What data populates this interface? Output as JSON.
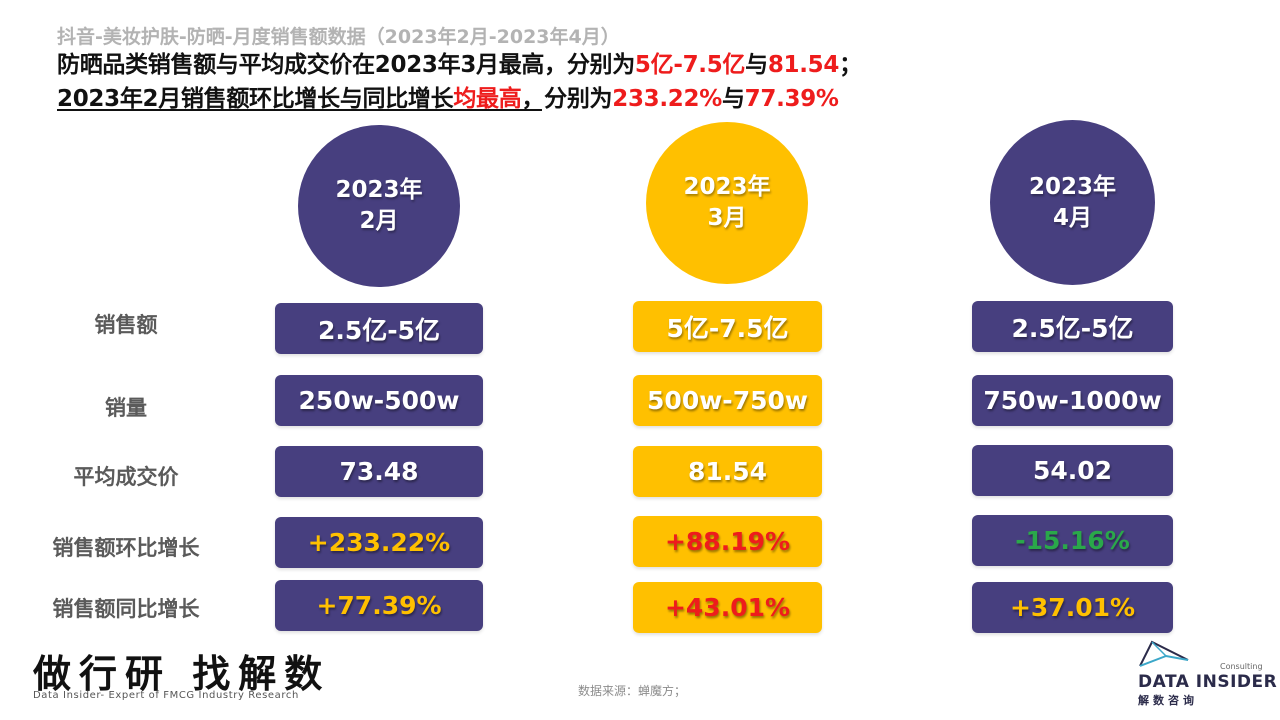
{
  "subtitle": "抖音-美妆护肤-防晒-月度销售额数据（2023年2月-2023年4月）",
  "headline": {
    "line1": [
      {
        "text": "防晒品类销售额与平均成交价在2023年3月最高，分别为",
        "color": "black"
      },
      {
        "text": "5亿-7.5亿",
        "color": "red"
      },
      {
        "text": "与",
        "color": "black"
      },
      {
        "text": "81.54",
        "color": "red"
      },
      {
        "text": "；",
        "color": "black"
      }
    ],
    "line2": [
      {
        "text": "2023年2月销售额环比增长与同比增长",
        "color": "black"
      },
      {
        "text": "均最高",
        "color": "red"
      },
      {
        "text": "，分别为",
        "color": "black"
      },
      {
        "text": "233.22%",
        "color": "red"
      },
      {
        "text": "与",
        "color": "black"
      },
      {
        "text": "77.39%",
        "color": "red"
      }
    ]
  },
  "colors": {
    "purple": "#473f7f",
    "yellow": "#ffc000",
    "red": "#ee1c1c",
    "green": "#2aa84a",
    "orange_text": "#ffc000",
    "label_gray": "#5a5a5a"
  },
  "months": [
    {
      "year": "2023年",
      "month": "2月",
      "color": "purple"
    },
    {
      "year": "2023年",
      "month": "3月",
      "color": "yellow"
    },
    {
      "year": "2023年",
      "month": "4月",
      "color": "purple"
    }
  ],
  "row_labels": [
    "销售额",
    "销量",
    "平均成交价",
    "销售额环比增长",
    "销售额同比增长"
  ],
  "table": {
    "feb": [
      "2.5亿-5亿",
      "250w-500w",
      "73.48",
      "+233.22%",
      "+77.39%"
    ],
    "mar": [
      "5亿-7.5亿",
      "500w-750w",
      "81.54",
      "+88.19%",
      "+43.01%"
    ],
    "apr": [
      "2.5亿-5亿",
      "750w-1000w",
      "54.02",
      "-15.16%",
      "+37.01%"
    ]
  },
  "footer": {
    "brand": "做行研 找解数",
    "brand_sub": "Data Insider- Expert of FMCG Industry Research",
    "source": "数据来源：蝉魔方；",
    "logo_consulting": "Consulting",
    "logo_name": "DATA INSIDER",
    "logo_cn": "解数咨询"
  }
}
